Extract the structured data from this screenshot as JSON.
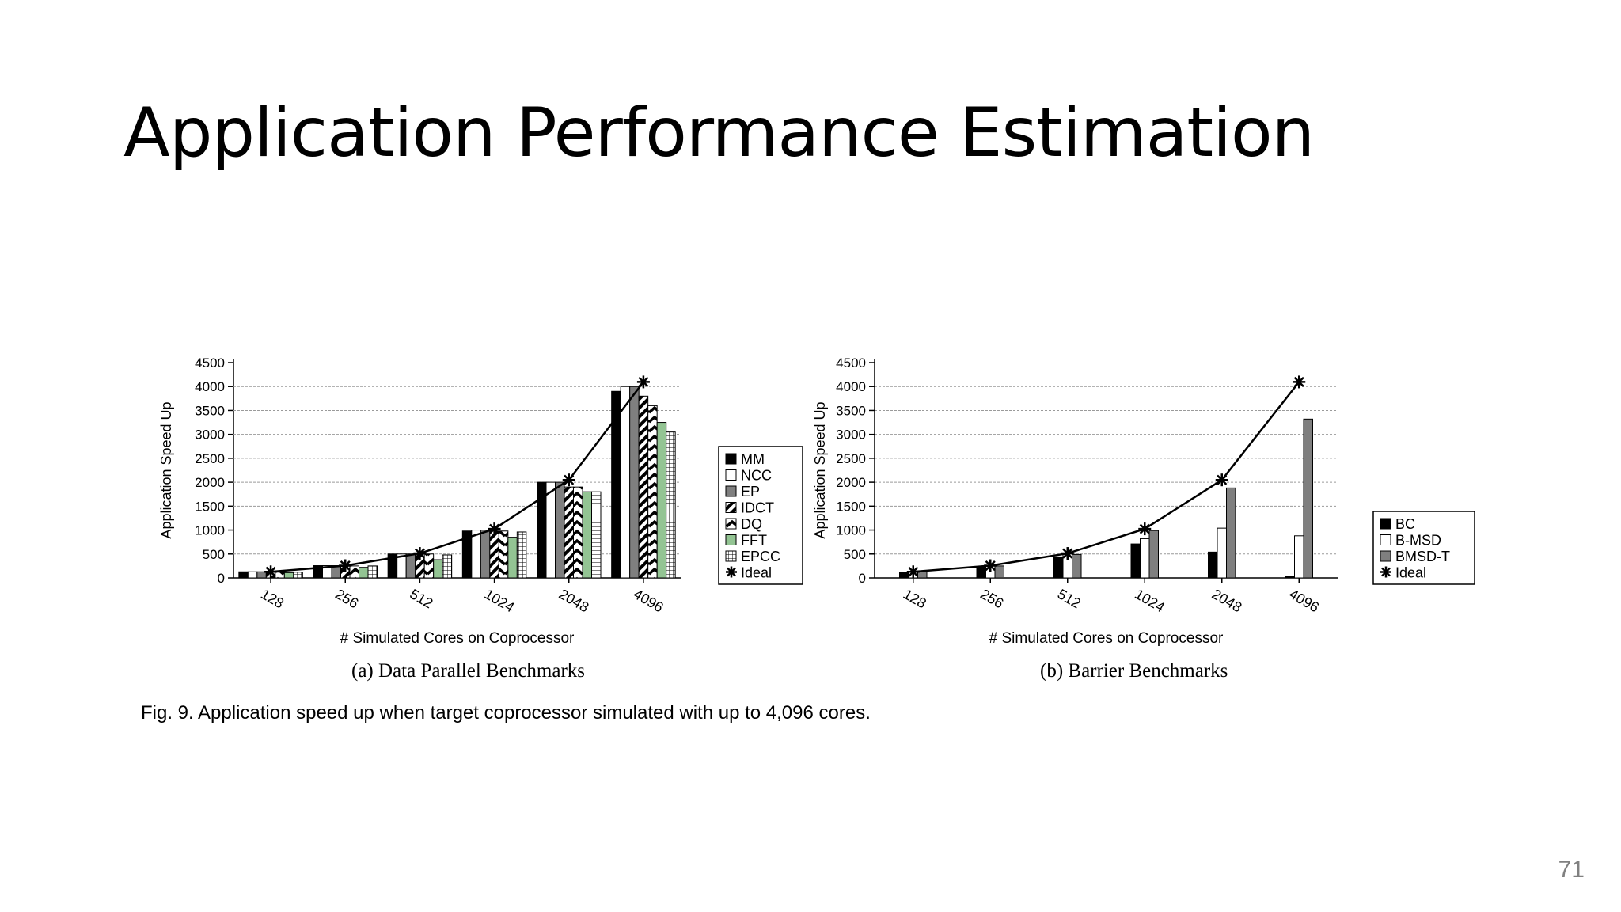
{
  "slide": {
    "title": "Application Performance Estimation",
    "fig_caption": "Fig. 9. Application speed up when target coprocessor simulated with up to 4,096 cores.",
    "page_number": "71"
  },
  "chart_data": [
    {
      "type": "bar",
      "caption": "(a) Data Parallel Benchmarks",
      "xlabel": "# Simulated Cores on Coprocessor",
      "ylabel": "Application Speed Up",
      "ylim": [
        0,
        4500
      ],
      "yticks": [
        0,
        500,
        1000,
        1500,
        2000,
        2500,
        3000,
        3500,
        4000,
        4500
      ],
      "grid": true,
      "legend_position": "right",
      "categories": [
        "128",
        "256",
        "512",
        "1024",
        "2048",
        "4096"
      ],
      "series": [
        {
          "name": "MM",
          "fill": "solid-black",
          "values": [
            128,
            256,
            500,
            980,
            2000,
            3900
          ]
        },
        {
          "name": "NCC",
          "fill": "white",
          "values": [
            128,
            256,
            500,
            1000,
            2000,
            4000
          ]
        },
        {
          "name": "EP",
          "fill": "gray",
          "values": [
            128,
            256,
            500,
            1000,
            2000,
            4000
          ]
        },
        {
          "name": "IDCT",
          "fill": "diagonal-black",
          "values": [
            120,
            250,
            500,
            980,
            1900,
            3800
          ]
        },
        {
          "name": "DQ",
          "fill": "zigzag-black",
          "values": [
            120,
            250,
            500,
            980,
            1900,
            3600
          ]
        },
        {
          "name": "FFT",
          "fill": "light-green",
          "values": [
            110,
            220,
            380,
            850,
            1800,
            3250
          ]
        },
        {
          "name": "EPCC",
          "fill": "grid",
          "values": [
            120,
            250,
            480,
            960,
            1800,
            3050
          ]
        }
      ],
      "ideal": {
        "name": "Ideal",
        "values": [
          128,
          256,
          512,
          1024,
          2048,
          4096
        ]
      }
    },
    {
      "type": "bar",
      "caption": "(b) Barrier Benchmarks",
      "xlabel": "# Simulated Cores on Coprocessor",
      "ylabel": "Application Speed Up",
      "ylim": [
        0,
        4500
      ],
      "yticks": [
        0,
        500,
        1000,
        1500,
        2000,
        2500,
        3000,
        3500,
        4000,
        4500
      ],
      "grid": true,
      "legend_position": "right",
      "categories": [
        "128",
        "256",
        "512",
        "1024",
        "2048",
        "4096"
      ],
      "series": [
        {
          "name": "BC",
          "fill": "solid-black",
          "values": [
            120,
            230,
            440,
            710,
            540,
            40
          ]
        },
        {
          "name": "B-MSD",
          "fill": "white",
          "values": [
            128,
            256,
            500,
            820,
            1040,
            880
          ]
        },
        {
          "name": "BMSD-T",
          "fill": "gray",
          "values": [
            128,
            250,
            490,
            990,
            1880,
            3320
          ]
        }
      ],
      "ideal": {
        "name": "Ideal",
        "values": [
          128,
          256,
          512,
          1024,
          2048,
          4096
        ]
      }
    }
  ]
}
